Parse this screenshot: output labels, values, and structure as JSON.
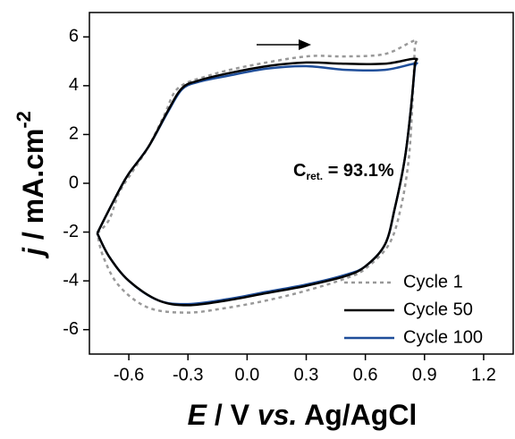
{
  "chart_data": {
    "type": "line",
    "xlabel": [
      "E",
      " / V ",
      "vs.",
      " Ag/AgCl"
    ],
    "ylabel": [
      "j",
      " / mA.cm",
      "-2"
    ],
    "annotation": [
      "C",
      "ret.",
      " = 93.1%"
    ],
    "xlim": [
      -0.8,
      1.35
    ],
    "ylim": [
      -7,
      7
    ],
    "xticks": [
      -0.6,
      -0.3,
      {
        "value": 0,
        "label": "0.0"
      },
      0.3,
      0.6,
      0.9,
      1.2
    ],
    "yticks": [
      -6,
      -4,
      -2,
      0,
      2,
      4,
      6
    ],
    "legend": "lower right",
    "series": [
      {
        "name": "Cycle 1",
        "color": "#999999",
        "dash": true,
        "x": [
          -0.76,
          -0.7,
          -0.65,
          -0.58,
          -0.5,
          -0.42,
          -0.35,
          -0.2,
          0.0,
          0.3,
          0.5,
          0.7,
          0.85,
          0.85,
          0.84,
          0.82,
          0.78,
          0.72,
          0.6,
          0.5,
          0.3,
          0.1,
          -0.1,
          -0.3,
          -0.5,
          -0.65,
          -0.73,
          -0.76
        ],
        "values": [
          -2.05,
          -1.5,
          -0.4,
          0.5,
          1.5,
          2.8,
          3.9,
          4.4,
          4.8,
          5.2,
          5.2,
          5.3,
          5.85,
          5.5,
          3.5,
          1.0,
          -1.0,
          -2.5,
          -3.5,
          -3.9,
          -4.4,
          -4.8,
          -5.1,
          -5.3,
          -5.1,
          -4.2,
          -3.0,
          -2.05
        ]
      },
      {
        "name": "Cycle 50",
        "color": "#000000",
        "dash": false,
        "x": [
          -0.76,
          -0.72,
          -0.65,
          -0.6,
          -0.5,
          -0.4,
          -0.33,
          -0.25,
          -0.1,
          0.1,
          0.3,
          0.5,
          0.7,
          0.85,
          0.85,
          0.83,
          0.8,
          0.75,
          0.7,
          0.6,
          0.5,
          0.3,
          0.1,
          -0.1,
          -0.3,
          -0.45,
          -0.6,
          -0.7,
          -0.76
        ],
        "values": [
          -2.05,
          -1.4,
          -0.3,
          0.4,
          1.5,
          3.0,
          3.9,
          4.2,
          4.5,
          4.8,
          4.95,
          4.9,
          4.9,
          5.1,
          4.8,
          3.0,
          1.0,
          -1.0,
          -2.5,
          -3.4,
          -3.8,
          -4.2,
          -4.5,
          -4.8,
          -5.0,
          -4.8,
          -4.0,
          -3.0,
          -2.05
        ]
      },
      {
        "name": "Cycle 100",
        "color": "#1f4e9a",
        "dash": false,
        "x": [
          -0.76,
          -0.72,
          -0.65,
          -0.6,
          -0.5,
          -0.4,
          -0.33,
          -0.25,
          -0.1,
          0.1,
          0.3,
          0.5,
          0.7,
          0.85,
          0.85,
          0.83,
          0.8,
          0.75,
          0.7,
          0.6,
          0.5,
          0.3,
          0.1,
          -0.1,
          -0.3,
          -0.45,
          -0.6,
          -0.7,
          -0.76
        ],
        "values": [
          -2.05,
          -1.4,
          -0.3,
          0.4,
          1.5,
          2.95,
          3.85,
          4.15,
          4.4,
          4.7,
          4.8,
          4.65,
          4.65,
          4.9,
          4.7,
          3.0,
          1.0,
          -1.0,
          -2.5,
          -3.4,
          -3.75,
          -4.15,
          -4.45,
          -4.75,
          -4.95,
          -4.8,
          -4.0,
          -3.0,
          -2.05
        ]
      }
    ]
  }
}
